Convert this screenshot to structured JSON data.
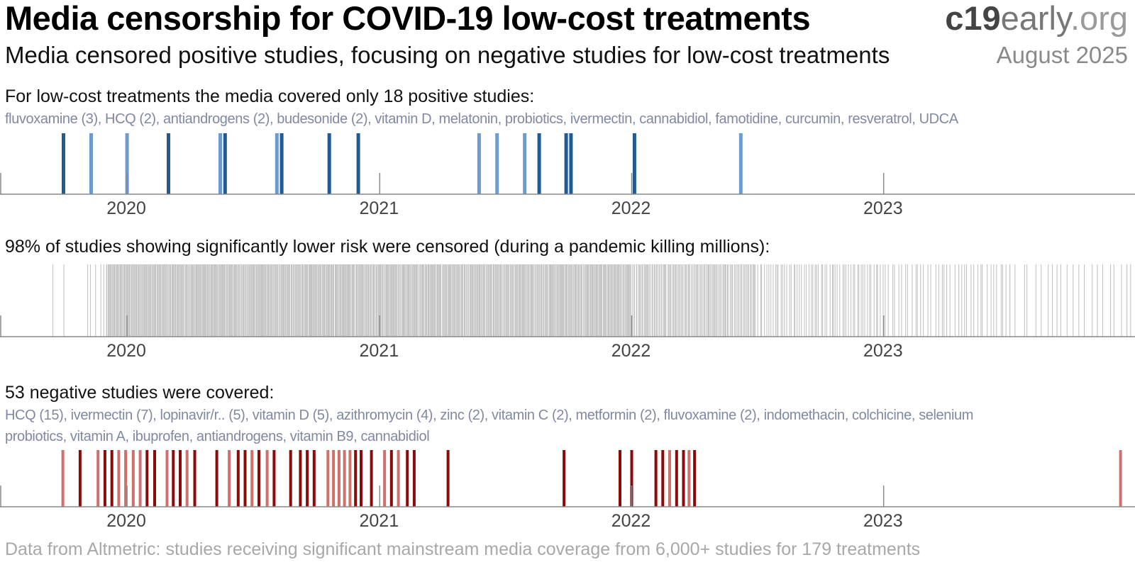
{
  "header": {
    "title": "Media censorship for COVID-19 low-cost treatments",
    "brand_bold": "c19",
    "brand_mid": "early",
    "brand_tail": ".org",
    "subtitle": "Media censored positive studies, focusing on negative studies for low-cost treatments",
    "date": "August 2025"
  },
  "sections": {
    "positive": {
      "heading": "For low-cost treatments the media covered only 18 positive studies:",
      "list": "fluvoxamine (3), HCQ (2), antiandrogens (2), budesonide (2), vitamin D, melatonin, probiotics, ivermectin, cannabidiol, famotidine, curcumin, resveratrol, UDCA"
    },
    "censored": {
      "heading": "98% of studies showing significantly lower risk were censored (during a pandemic killing millions):"
    },
    "negative": {
      "heading": "53 negative studies were covered:",
      "list_line1": "HCQ (15), ivermectin (7), lopinavir/r.. (5), vitamin D (5), azithromycin (4), zinc (2), vitamin C (2), metformin (2), fluvoxamine (2), indomethacin, colchicine, selenium",
      "list_line2": "probiotics, vitamin A, ibuprofen, antiandrogens, vitamin B9, cannabidiol"
    }
  },
  "footer": "Data from Altmetric: studies receiving significant mainstream media coverage from 6,000+ studies for 179 treatments",
  "colors": {
    "positive_dark": "#1f5b94",
    "positive_light": "#6b9bd1",
    "censored": "#c4c4c4",
    "negative_dark": "#8b0a0a",
    "negative_light": "#d0706a",
    "axis": "#8a8a8a"
  },
  "chart_data": [
    {
      "type": "strip",
      "name": "covered positive studies",
      "x_range": [
        "2019-07-01",
        "2023-12-31"
      ],
      "x_tick_labels": [
        "2020",
        "2021",
        "2022",
        "2023"
      ],
      "events": [
        {
          "date": "2019-10-01",
          "shade": "dark"
        },
        {
          "date": "2019-11-10",
          "shade": "light"
        },
        {
          "date": "2020-01-01",
          "shade": "light"
        },
        {
          "date": "2020-03-01",
          "shade": "dark"
        },
        {
          "date": "2020-05-15",
          "shade": "light"
        },
        {
          "date": "2020-05-22",
          "shade": "dark"
        },
        {
          "date": "2020-08-05",
          "shade": "light"
        },
        {
          "date": "2020-08-12",
          "shade": "dark"
        },
        {
          "date": "2020-10-20",
          "shade": "dark"
        },
        {
          "date": "2020-12-01",
          "shade": "dark"
        },
        {
          "date": "2021-05-25",
          "shade": "light"
        },
        {
          "date": "2021-06-20",
          "shade": "light"
        },
        {
          "date": "2021-07-30",
          "shade": "light"
        },
        {
          "date": "2021-08-20",
          "shade": "dark"
        },
        {
          "date": "2021-09-28",
          "shade": "dark"
        },
        {
          "date": "2021-10-05",
          "shade": "dark"
        },
        {
          "date": "2022-01-05",
          "shade": "dark"
        },
        {
          "date": "2022-06-08",
          "shade": "light"
        }
      ]
    },
    {
      "type": "strip",
      "name": "censored studies (significantly lower risk)",
      "x_range": [
        "2019-07-01",
        "2023-12-31"
      ],
      "x_tick_labels": [
        "2020",
        "2021",
        "2022",
        "2023"
      ],
      "density_periods": [
        {
          "from": "2019-09-15",
          "to": "2019-09-16",
          "approx_count": 1
        },
        {
          "from": "2019-10-01",
          "to": "2019-10-02",
          "approx_count": 1
        },
        {
          "from": "2019-11-01",
          "to": "2019-11-30",
          "approx_count": 5
        },
        {
          "from": "2019-12-01",
          "to": "2021-03-31",
          "approx_count": 420
        },
        {
          "from": "2021-04-01",
          "to": "2021-12-31",
          "approx_count": 230
        },
        {
          "from": "2022-01-01",
          "to": "2022-06-30",
          "approx_count": 110
        },
        {
          "from": "2022-07-01",
          "to": "2022-12-31",
          "approx_count": 60
        },
        {
          "from": "2023-01-01",
          "to": "2023-06-30",
          "approx_count": 38
        },
        {
          "from": "2023-07-01",
          "to": "2023-12-31",
          "approx_count": 22
        }
      ]
    },
    {
      "type": "strip",
      "name": "covered negative studies",
      "x_range": [
        "2019-07-01",
        "2023-12-31"
      ],
      "x_tick_labels": [
        "2020",
        "2021",
        "2022",
        "2023"
      ],
      "events": [
        {
          "date": "2019-09-30",
          "shade": "light"
        },
        {
          "date": "2019-10-25",
          "shade": "dark"
        },
        {
          "date": "2019-11-20",
          "shade": "light"
        },
        {
          "date": "2019-11-30",
          "shade": "dark"
        },
        {
          "date": "2019-12-10",
          "shade": "dark"
        },
        {
          "date": "2019-12-20",
          "shade": "light"
        },
        {
          "date": "2019-12-30",
          "shade": "light"
        },
        {
          "date": "2020-01-10",
          "shade": "light"
        },
        {
          "date": "2020-01-20",
          "shade": "light"
        },
        {
          "date": "2020-01-30",
          "shade": "dark"
        },
        {
          "date": "2020-02-10",
          "shade": "dark"
        },
        {
          "date": "2020-02-28",
          "shade": "light"
        },
        {
          "date": "2020-03-08",
          "shade": "dark"
        },
        {
          "date": "2020-03-18",
          "shade": "dark"
        },
        {
          "date": "2020-03-28",
          "shade": "light"
        },
        {
          "date": "2020-04-08",
          "shade": "dark"
        },
        {
          "date": "2020-05-10",
          "shade": "dark"
        },
        {
          "date": "2020-05-28",
          "shade": "light"
        },
        {
          "date": "2020-06-10",
          "shade": "dark"
        },
        {
          "date": "2020-06-20",
          "shade": "dark"
        },
        {
          "date": "2020-06-30",
          "shade": "light"
        },
        {
          "date": "2020-07-10",
          "shade": "dark"
        },
        {
          "date": "2020-07-22",
          "shade": "light"
        },
        {
          "date": "2020-08-01",
          "shade": "dark"
        },
        {
          "date": "2020-08-25",
          "shade": "dark"
        },
        {
          "date": "2020-09-08",
          "shade": "dark"
        },
        {
          "date": "2020-09-18",
          "shade": "dark"
        },
        {
          "date": "2020-09-28",
          "shade": "dark"
        },
        {
          "date": "2020-10-18",
          "shade": "light"
        },
        {
          "date": "2020-10-26",
          "shade": "light"
        },
        {
          "date": "2020-11-03",
          "shade": "light"
        },
        {
          "date": "2020-11-11",
          "shade": "light"
        },
        {
          "date": "2020-11-19",
          "shade": "light"
        },
        {
          "date": "2020-11-27",
          "shade": "dark"
        },
        {
          "date": "2020-12-05",
          "shade": "dark"
        },
        {
          "date": "2020-12-20",
          "shade": "dark"
        },
        {
          "date": "2021-01-08",
          "shade": "light"
        },
        {
          "date": "2021-01-18",
          "shade": "dark"
        },
        {
          "date": "2021-01-28",
          "shade": "light"
        },
        {
          "date": "2021-02-10",
          "shade": "dark"
        },
        {
          "date": "2021-02-20",
          "shade": "dark"
        },
        {
          "date": "2021-04-10",
          "shade": "dark"
        },
        {
          "date": "2021-09-25",
          "shade": "dark"
        },
        {
          "date": "2021-12-15",
          "shade": "dark"
        },
        {
          "date": "2022-01-01",
          "shade": "dark"
        },
        {
          "date": "2022-02-05",
          "shade": "dark"
        },
        {
          "date": "2022-02-15",
          "shade": "dark"
        },
        {
          "date": "2022-02-25",
          "shade": "light"
        },
        {
          "date": "2022-03-07",
          "shade": "dark"
        },
        {
          "date": "2022-03-17",
          "shade": "dark"
        },
        {
          "date": "2022-03-25",
          "shade": "light"
        },
        {
          "date": "2022-04-02",
          "shade": "dark"
        },
        {
          "date": "2023-12-10",
          "shade": "light"
        }
      ]
    }
  ]
}
